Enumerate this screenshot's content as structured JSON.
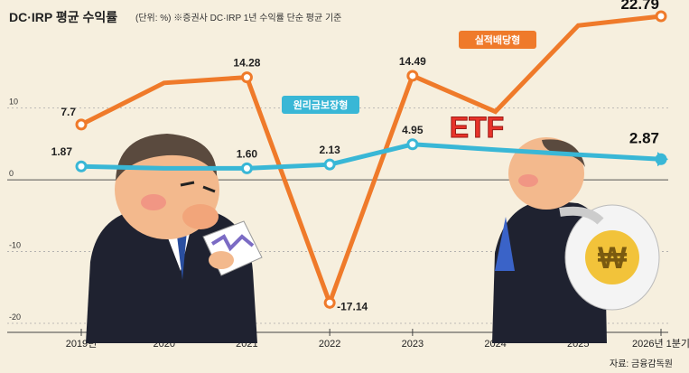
{
  "header": {
    "title": "DC·IRP 평균 수익률",
    "note": "(단위: %) ※증권사 DC·IRP 1년 수익률 단순 평균 기준"
  },
  "source": "자료: 금융감독원",
  "illustration": {
    "etf_text": "ETF",
    "money_sign": "₩"
  },
  "colors": {
    "background": "#f6efde",
    "series_orange": "#ef7a2a",
    "series_cyan": "#39b7d6"
  },
  "chart_data": {
    "type": "line",
    "categories": [
      "2019년",
      "2020",
      "2021",
      "2022",
      "2023",
      "2024",
      "2025",
      "2026년 1분기"
    ],
    "ylim": [
      -20,
      22.79
    ],
    "yticks": [
      10,
      0,
      -10,
      -20
    ],
    "grid": "horizontal dotted",
    "legend": "labels on lines",
    "series": [
      {
        "name": "실적배당형",
        "color": "#ef7a2a",
        "values": [
          7.7,
          13.5,
          14.28,
          -17.14,
          14.49,
          9.5,
          21.5,
          22.79
        ],
        "labels": [
          "7.7",
          "",
          "14.28",
          "-17.14",
          "14.49",
          "",
          "",
          "22.79"
        ]
      },
      {
        "name": "원리금보장형",
        "color": "#39b7d6",
        "values": [
          1.87,
          1.6,
          1.6,
          2.13,
          4.95,
          4.2,
          3.5,
          2.87
        ],
        "labels": [
          "1.87",
          "",
          "1.60",
          "2.13",
          "4.95",
          "",
          "",
          "2.87"
        ]
      }
    ]
  }
}
